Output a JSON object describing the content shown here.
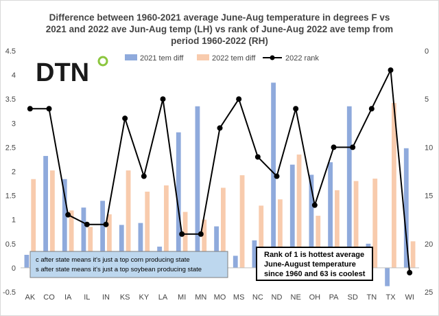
{
  "chart_data": {
    "type": "bar",
    "title_lines": [
      "Difference between 1960-2021 average June-Aug temperature in degrees F vs",
      "2021 and 2022 ave Jun-Aug temp (LH) vs rank of June-Aug 2022 ave temp from",
      "period 1960-2022 (RH)"
    ],
    "categories": [
      "AK",
      "CO",
      "IA",
      "IL",
      "IN",
      "KS",
      "KY",
      "LA",
      "MI",
      "MN",
      "MO",
      "MS",
      "NC",
      "ND",
      "NE",
      "OH",
      "PA",
      "SD",
      "TN",
      "TX",
      "WI"
    ],
    "series": [
      {
        "name": "2021 tem diff",
        "kind": "bar",
        "axis": "left",
        "color": "#8faadc",
        "values": [
          0.27,
          2.32,
          1.84,
          1.25,
          1.39,
          0.89,
          0.93,
          0.44,
          2.81,
          3.35,
          0.86,
          0.25,
          0.57,
          3.84,
          2.14,
          1.93,
          2.19,
          3.35,
          0.5,
          -0.38,
          2.48
        ]
      },
      {
        "name": "2022 tem diff",
        "kind": "bar",
        "axis": "left",
        "color": "#f8cbad",
        "values": [
          1.84,
          2.02,
          1.19,
          0.85,
          1.11,
          2.02,
          1.58,
          1.71,
          1.16,
          1.0,
          1.66,
          1.92,
          1.29,
          1.42,
          2.35,
          1.08,
          1.61,
          1.8,
          1.85,
          3.42,
          0.55
        ]
      },
      {
        "name": "2022 rank",
        "kind": "line",
        "axis": "right",
        "color": "#000000",
        "values": [
          6,
          6,
          17,
          18,
          18,
          7,
          13,
          5,
          19,
          19,
          8,
          5,
          11,
          13,
          6,
          16,
          10,
          10,
          6,
          2,
          23
        ]
      }
    ],
    "left_axis": {
      "min": -0.5,
      "max": 4.5,
      "step": 0.5,
      "ticks": [
        "-0.5",
        "0",
        "0.5",
        "1",
        "1.5",
        "2",
        "2.5",
        "3",
        "3.5",
        "4",
        "4.5"
      ]
    },
    "right_axis": {
      "min": 0,
      "max": 25,
      "step": 5,
      "inverted": true,
      "ticks": [
        "0",
        "5",
        "10",
        "15",
        "20",
        "25"
      ]
    },
    "grid": false,
    "legend_position": "top"
  },
  "logo": {
    "text": "DTN"
  },
  "notes": {
    "state_codes": [
      "c after state means it's just a top corn producing state",
      "s after state means it's just a top soybean producing state"
    ],
    "rank": [
      "Rank of 1 is hottest average",
      "June-August temperature",
      "since 1960 and 63 is coolest"
    ]
  }
}
